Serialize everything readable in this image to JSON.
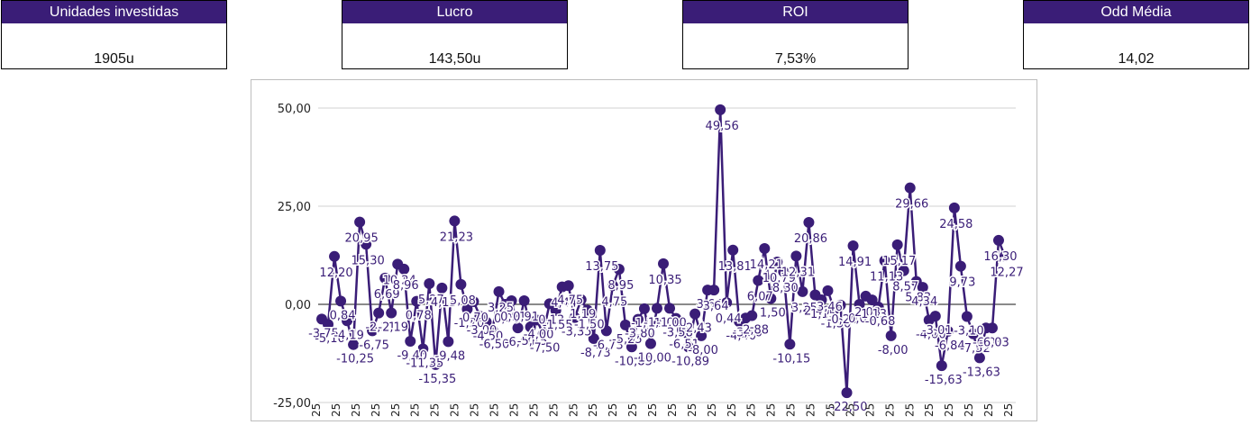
{
  "kpis": [
    {
      "label": "Unidades investidas",
      "value": "1905u"
    },
    {
      "label": "Lucro",
      "value": "143,50u"
    },
    {
      "label": "ROI",
      "value": "7,53%"
    },
    {
      "label": "Odd Média",
      "value": "14,02"
    }
  ],
  "colors": {
    "accent": "#3a1d77",
    "line": "#3a1d77",
    "zero_line": "#444444",
    "grid": "#d0d0d0"
  },
  "chart_data": {
    "type": "line",
    "title": "",
    "xlabel": "",
    "ylabel": "",
    "ylim": [
      -25,
      50
    ],
    "y_ticks": [
      {
        "value": -25,
        "label": "-25,00"
      },
      {
        "value": 0,
        "label": "0,00"
      },
      {
        "value": 25,
        "label": "25,00"
      },
      {
        "value": 50,
        "label": "50,00"
      }
    ],
    "grid": true,
    "series": [
      {
        "values": [
          -3.75,
          -5.1,
          12.2,
          0.84,
          -4.19,
          -10.25,
          20.95,
          15.3,
          -6.75,
          -2.21,
          6.69,
          -2.19,
          10.24,
          8.96,
          -9.4,
          0.78,
          -11.35,
          5.27,
          -15.35,
          4.15,
          -9.48,
          21.23,
          5.08,
          -1.2,
          0.7,
          -3.0,
          -4.5,
          -6.5,
          3.25,
          0.0,
          0.91,
          -6.0,
          0.91,
          -5.75,
          -4.0,
          -7.5,
          0.13,
          -1.55,
          4.44,
          4.75,
          -3.35,
          1.19,
          -1.5,
          -8.73,
          13.75,
          -6.73,
          4.75,
          8.95,
          -5.25,
          -10.85,
          -3.8,
          -1.11,
          -10.0,
          -1.0,
          10.35,
          -1.0,
          -3.58,
          -6.51,
          -10.89,
          -2.43,
          -8.0,
          3.64,
          3.64,
          49.56,
          0.44,
          13.81,
          -4.4,
          -3.5,
          -2.88,
          6.07,
          14.21,
          1.5,
          10.79,
          8.3,
          -10.15,
          12.31,
          3.25,
          20.86,
          2.4,
          1.15,
          3.46,
          -1.3,
          -0.2,
          -22.5,
          14.91,
          0.0,
          2.08,
          1.13,
          -0.68,
          11.13,
          -8.0,
          15.17,
          8.57,
          29.66,
          5.83,
          4.34,
          -4.0,
          -3.01,
          -15.63,
          -6.84,
          24.58,
          9.73,
          -3.1,
          -7.52,
          -13.63,
          -6.03,
          -6.03,
          16.3,
          12.27
        ],
        "labels": [
          "-3,75",
          "-5,10",
          "12,20",
          "0,84",
          "-4,19",
          "-10,25",
          "20,95",
          "15,30",
          "-6,75",
          "-2,21",
          "6,69",
          "-2,19",
          "10,24",
          "8,96",
          "-9,40",
          "0,78",
          "-11,35",
          "5,27",
          "-15,35",
          "4,15",
          "-9,48",
          "21,23",
          "5,08",
          "-1,20",
          "0,70",
          "-3,00",
          "-4,50",
          "-6,50",
          "3,25",
          "0,00",
          "0,91",
          "-6,00",
          "0,91",
          "-5,75",
          "-4,00",
          "-7,50",
          "0,13",
          "-1,55",
          "4,44",
          "4,75",
          "-3,35",
          "1,19",
          "-1,50",
          "-8,73",
          "13,75",
          "-6,73",
          "4,75",
          "8,95",
          "-5,25",
          "-10,85",
          "-3,80",
          "-1,11",
          "-10,00",
          "-1,00",
          "10,35",
          "-1,00",
          "-3,58",
          "-6,51",
          "-10,89",
          "-2,43",
          "-8,00",
          "3,64",
          "3,64",
          "49,56",
          "0,44",
          "13,81",
          "-4,40",
          "-3,50",
          "-2,88",
          "6,07",
          "14,21",
          "1,50",
          "10,79",
          "8,30",
          "-10,15",
          "12,31",
          "3,25",
          "20,86",
          "2,40",
          "1,15",
          "3,46",
          "-1,30",
          "-0,20",
          "-22,50",
          "14,91",
          "0,00",
          "2,08",
          "1,13",
          "-0,68",
          "11,13",
          "-8,00",
          "15,17",
          "8,57",
          "29,66",
          "5,83",
          "4,34",
          "-4,00",
          "-3,01",
          "-15,63",
          "-6,84",
          "24,58",
          "9,73",
          "-3,10",
          "-7,52",
          "-13,63",
          "-6,03",
          "-6,03",
          "16,30",
          "12,27"
        ]
      }
    ],
    "x_tick_label": "25",
    "x_tick_count": 36
  }
}
